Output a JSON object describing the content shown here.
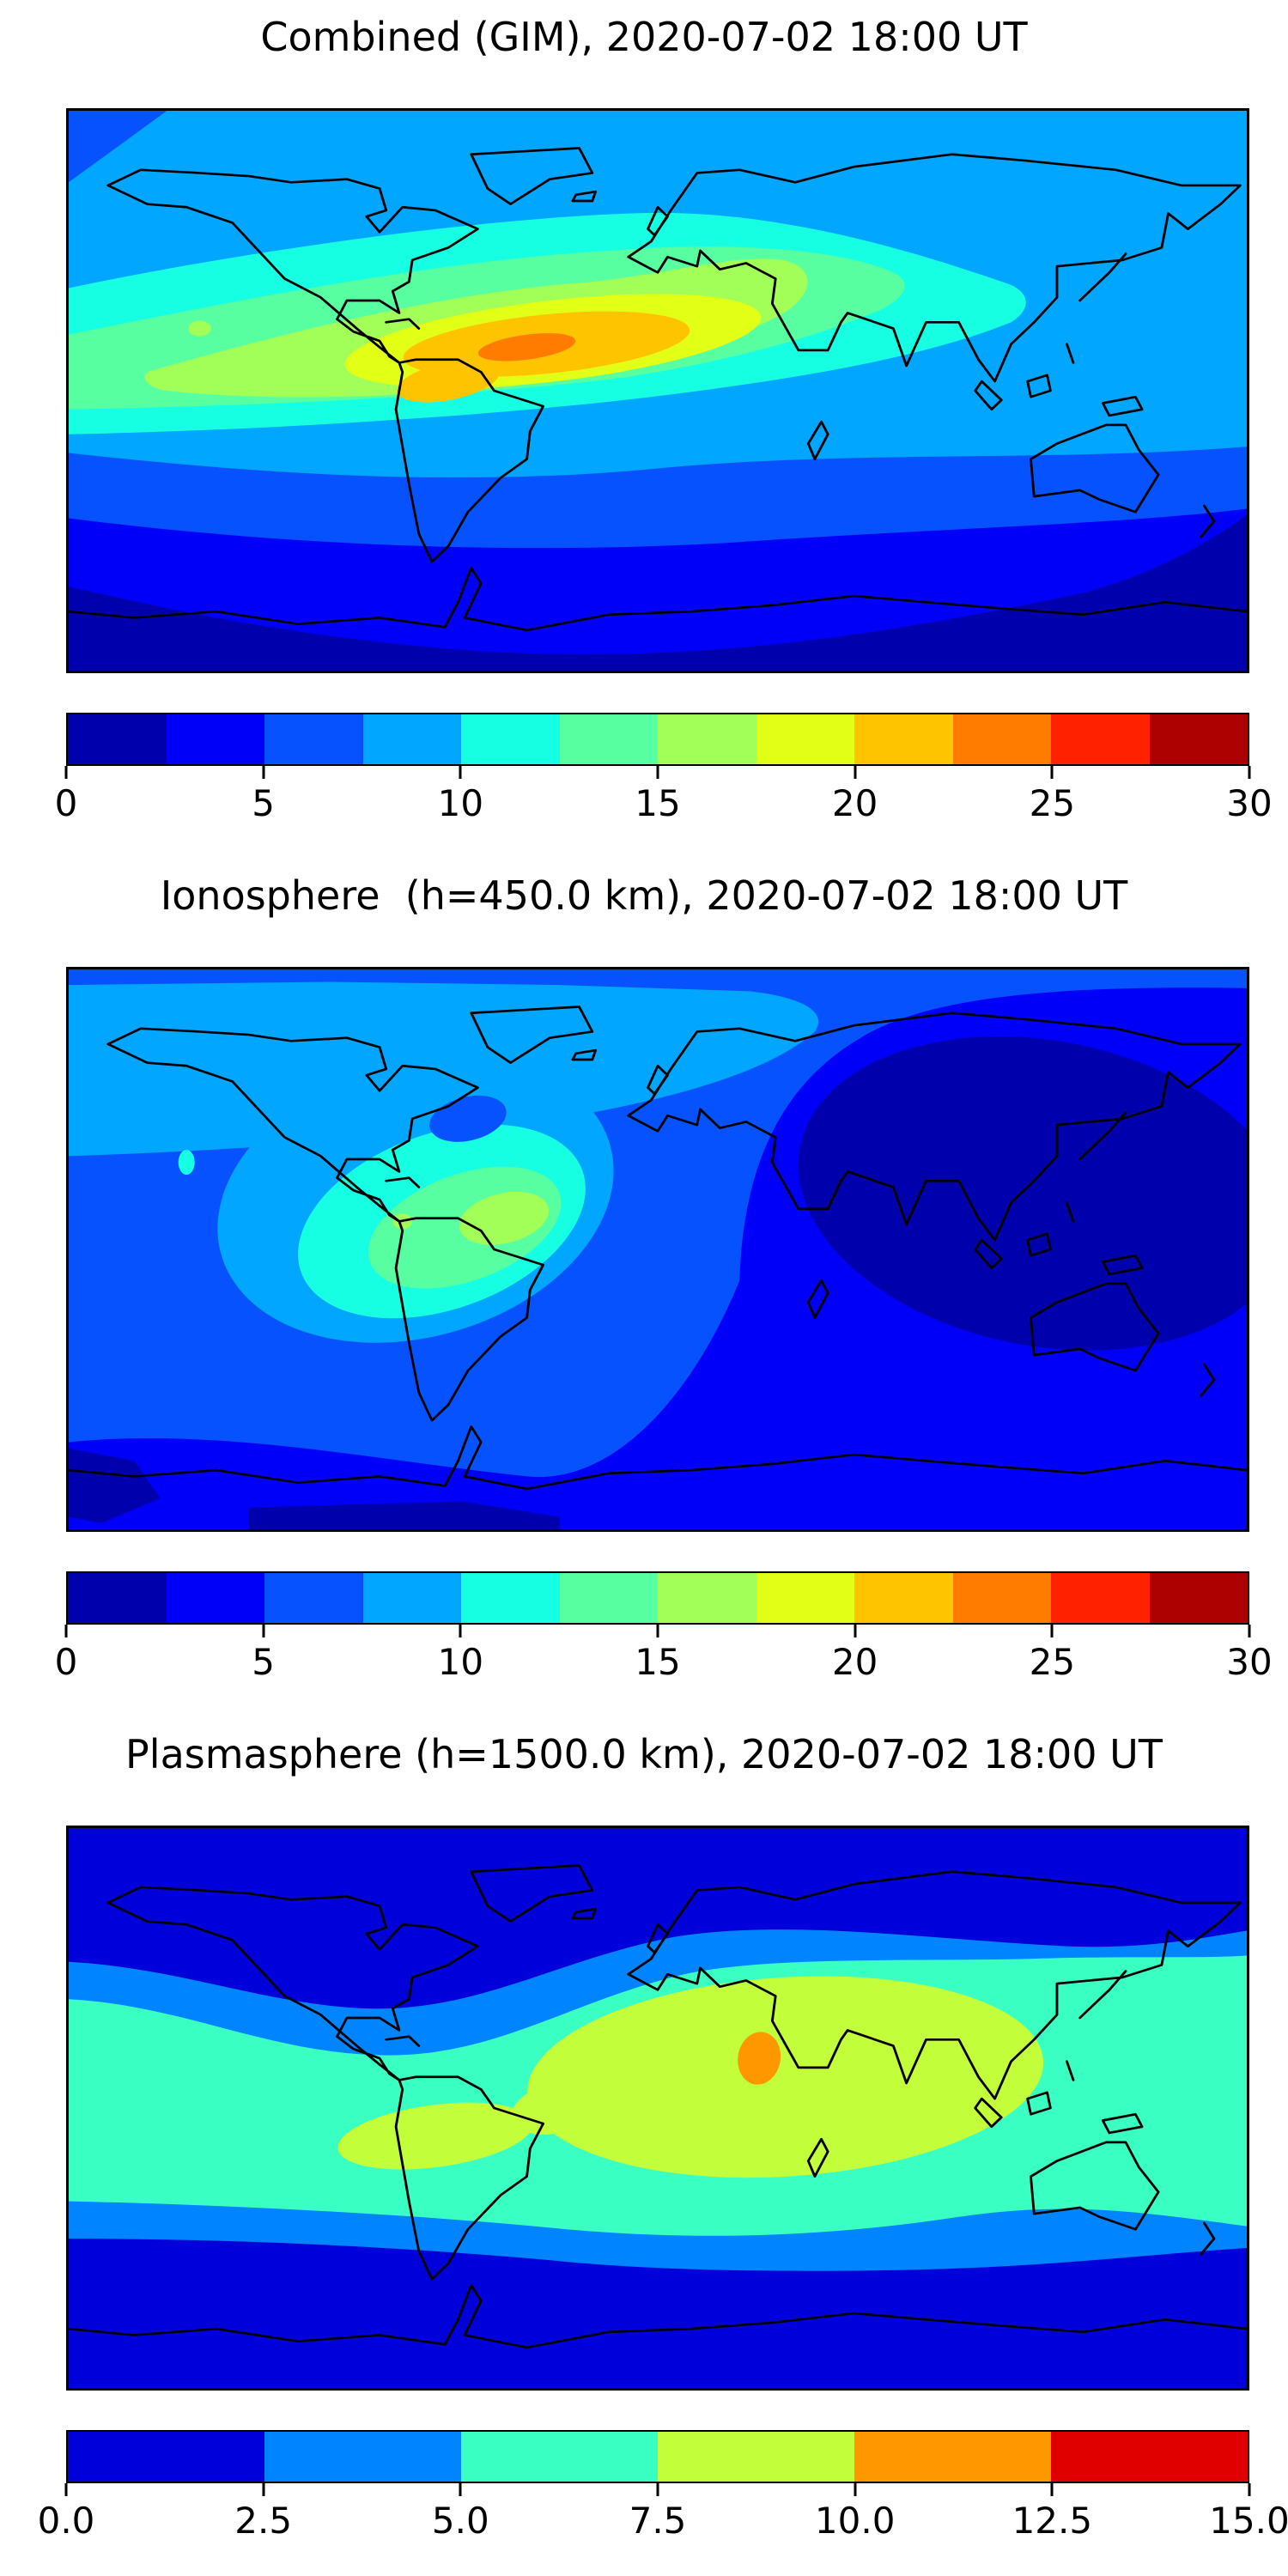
{
  "panels": [
    {
      "id": "combined-gim",
      "title": "Combined (GIM), 2020-07-02 18:00 UT",
      "colorbar": {
        "segment_colors": [
          "#0000AD",
          "#0000F8",
          "#0652FF",
          "#00A6FF",
          "#16FFE2",
          "#58FFA1",
          "#A1FF58",
          "#E2FF16",
          "#FFC400",
          "#FF7C00",
          "#FF2100",
          "#AD0000"
        ],
        "tick_labels": [
          "0",
          "5",
          "10",
          "15",
          "20",
          "25",
          "30"
        ]
      }
    },
    {
      "id": "ionosphere",
      "title": "Ionosphere  (h=450.0 km), 2020-07-02 18:00 UT",
      "colorbar": {
        "segment_colors": [
          "#0000AD",
          "#0000F8",
          "#0652FF",
          "#00A6FF",
          "#16FFE2",
          "#58FFA1",
          "#A1FF58",
          "#E2FF16",
          "#FFC400",
          "#FF7C00",
          "#FF2100",
          "#AD0000"
        ],
        "tick_labels": [
          "0",
          "5",
          "10",
          "15",
          "20",
          "25",
          "30"
        ]
      }
    },
    {
      "id": "plasmasphere",
      "title": "Plasmasphere (h=1500.0 km), 2020-07-02 18:00 UT",
      "colorbar": {
        "segment_colors": [
          "#0000DA",
          "#0084FF",
          "#3AFFC2",
          "#C2FF3A",
          "#FF9700",
          "#E00000"
        ],
        "tick_labels": [
          "0.0",
          "2.5",
          "5.0",
          "7.5",
          "10.0",
          "12.5",
          "15.0"
        ]
      }
    }
  ],
  "chart_data": [
    {
      "type": "heatmap",
      "variant": "filled_contour_world_map",
      "title": "Combined (GIM), 2020-07-02 18:00 UT",
      "projection": "equirectangular",
      "lon_range": [
        -180,
        180
      ],
      "lat_range": [
        -90,
        90
      ],
      "colormap": "jet, 12 discrete bands",
      "contour_levels": [
        0,
        2.5,
        5,
        7.5,
        10,
        12.5,
        15,
        17.5,
        20,
        22.5,
        25,
        27.5,
        30
      ],
      "colorbar_ticks": [
        0,
        5,
        10,
        15,
        20,
        25,
        30
      ],
      "legend_position": "horizontal colorbar below map",
      "features": [
        {
          "feature": "northern mid/high latitude background",
          "value_range": [
            7.5,
            10
          ]
        },
        {
          "feature": "north-west arctic corner",
          "value_range": [
            5,
            7.5
          ]
        },
        {
          "feature": "broad tropical enhancement band (Pacific to South Asia)",
          "value_range": [
            10,
            15
          ]
        },
        {
          "feature": "strong maximum over northern South America / tropical Atlantic / West Africa",
          "lon_range": [
            -75,
            10
          ],
          "lat_range": [
            0,
            25
          ],
          "value_range": [
            17.5,
            22.5
          ]
        },
        {
          "feature": "elongated east-west peak core",
          "lon": -40,
          "lat": 14,
          "value_range": [
            22.5,
            25
          ]
        },
        {
          "feature": "southern mid-latitude band",
          "value_range": [
            2.5,
            7.5
          ]
        },
        {
          "feature": "southern polar minimum",
          "value_range": [
            0,
            2.5
          ]
        }
      ]
    },
    {
      "type": "heatmap",
      "variant": "filled_contour_world_map",
      "title": "Ionosphere  (h=450.0 km), 2020-07-02 18:00 UT",
      "projection": "equirectangular",
      "lon_range": [
        -180,
        180
      ],
      "lat_range": [
        -90,
        90
      ],
      "colormap": "jet, 12 discrete bands",
      "contour_levels": [
        0,
        2.5,
        5,
        7.5,
        10,
        12.5,
        15,
        17.5,
        20,
        22.5,
        25,
        27.5,
        30
      ],
      "colorbar_ticks": [
        0,
        5,
        10,
        15,
        20,
        25,
        30
      ],
      "legend_position": "horizontal colorbar below map",
      "features": [
        {
          "feature": "global background, mid-latitudes",
          "value_range": [
            5,
            7.5
          ]
        },
        {
          "feature": "azure band over North America / North Atlantic / Europe",
          "value_range": [
            7.5,
            10
          ]
        },
        {
          "feature": "night-side minimum over Asia / Indian Ocean",
          "lon_range": [
            40,
            160
          ],
          "lat_range": [
            -40,
            45
          ],
          "value_range": [
            0,
            2.5
          ]
        },
        {
          "feature": "American sector enhancement",
          "lon_range": [
            -110,
            -20
          ],
          "lat_range": [
            -20,
            35
          ],
          "value_range": [
            10,
            15
          ]
        },
        {
          "feature": "peak over north-eastern South America",
          "lon": -45,
          "lat": 9,
          "value_range": [
            15,
            17.5
          ]
        },
        {
          "feature": "southern high-latitude band",
          "value_range": [
            2.5,
            5
          ]
        }
      ]
    },
    {
      "type": "heatmap",
      "variant": "filled_contour_world_map",
      "title": "Plasmasphere (h=1500.0 km), 2020-07-02 18:00 UT",
      "projection": "equirectangular",
      "lon_range": [
        -180,
        180
      ],
      "lat_range": [
        -90,
        90
      ],
      "colormap": "jet, 6 discrete bands",
      "contour_levels": [
        0,
        2.5,
        5,
        7.5,
        10,
        12.5,
        15
      ],
      "colorbar_ticks": [
        0.0,
        2.5,
        5.0,
        7.5,
        10.0,
        12.5,
        15.0
      ],
      "legend_position": "horizontal colorbar below map",
      "features": [
        {
          "feature": "polar caps north and south",
          "value_range": [
            0,
            2.5
          ]
        },
        {
          "feature": "mid-latitude transition bands",
          "value_range": [
            2.5,
            5
          ]
        },
        {
          "feature": "broad equatorial belt",
          "lat_range": [
            -35,
            40
          ],
          "value_range": [
            5,
            7.5
          ]
        },
        {
          "feature": "enhancement over Africa / Middle East / South Asia",
          "lon_range": [
            -25,
            115
          ],
          "lat_range": [
            -15,
            40
          ],
          "value_range": [
            7.5,
            10
          ]
        },
        {
          "feature": "enhancement over South America",
          "lon_range": [
            -95,
            -35
          ],
          "lat_range": [
            -20,
            0
          ],
          "value_range": [
            7.5,
            10
          ]
        },
        {
          "feature": "peak spot over north-east Africa",
          "lon": 31,
          "lat": 16,
          "value_range": [
            10,
            12.5
          ]
        }
      ]
    }
  ]
}
